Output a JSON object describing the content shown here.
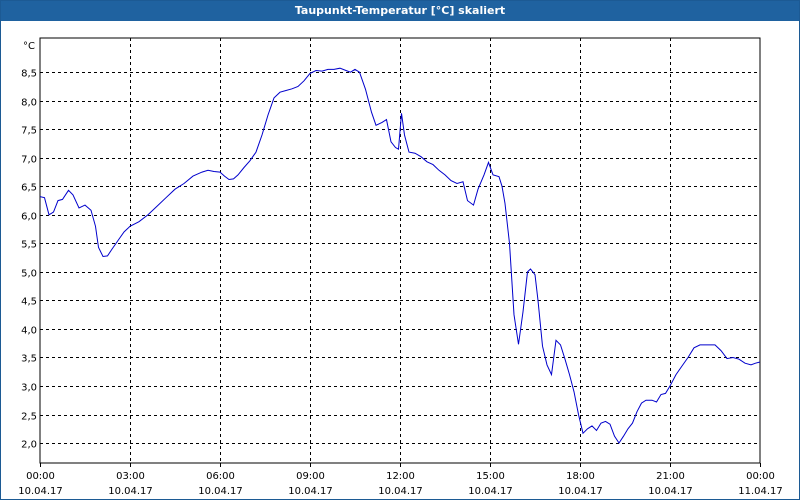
{
  "window": {
    "title": "Taupunkt-Temperatur [°C] skaliert"
  },
  "colors": {
    "title_bar": "#1f62a0",
    "line": "#0000cc",
    "grid": "#000000",
    "background": "#ffffff"
  },
  "chart_data": {
    "type": "line",
    "title": "Taupunkt-Temperatur [°C] skaliert",
    "unit_label": "°C",
    "xlabel": "",
    "ylabel": "",
    "ylim": [
      1.65,
      9.1
    ],
    "xlim_hours": [
      0,
      24
    ],
    "grid": true,
    "y_ticks": [
      {
        "value": 2.0,
        "label": "2,0"
      },
      {
        "value": 2.5,
        "label": "2,5"
      },
      {
        "value": 3.0,
        "label": "3,0"
      },
      {
        "value": 3.5,
        "label": "3,5"
      },
      {
        "value": 4.0,
        "label": "4,0"
      },
      {
        "value": 4.5,
        "label": "4,5"
      },
      {
        "value": 5.0,
        "label": "5,0"
      },
      {
        "value": 5.5,
        "label": "5,5"
      },
      {
        "value": 6.0,
        "label": "6,0"
      },
      {
        "value": 6.5,
        "label": "6,5"
      },
      {
        "value": 7.0,
        "label": "7,0"
      },
      {
        "value": 7.5,
        "label": "7,5"
      },
      {
        "value": 8.0,
        "label": "8,0"
      },
      {
        "value": 8.5,
        "label": "8,5"
      }
    ],
    "x_ticks": [
      {
        "hour": 0,
        "time": "00:00",
        "date": "10.04.17"
      },
      {
        "hour": 3,
        "time": "03:00",
        "date": "10.04.17"
      },
      {
        "hour": 6,
        "time": "06:00",
        "date": "10.04.17"
      },
      {
        "hour": 9,
        "time": "09:00",
        "date": "10.04.17"
      },
      {
        "hour": 12,
        "time": "12:00",
        "date": "10.04.17"
      },
      {
        "hour": 15,
        "time": "15:00",
        "date": "10.04.17"
      },
      {
        "hour": 18,
        "time": "18:00",
        "date": "10.04.17"
      },
      {
        "hour": 21,
        "time": "21:00",
        "date": "10.04.17"
      },
      {
        "hour": 24,
        "time": "00:00",
        "date": "11.04.17"
      }
    ],
    "series": [
      {
        "points": [
          [
            0.0,
            6.32
          ],
          [
            0.15,
            6.3
          ],
          [
            0.3,
            6.0
          ],
          [
            0.45,
            6.05
          ],
          [
            0.6,
            6.25
          ],
          [
            0.75,
            6.27
          ],
          [
            0.95,
            6.43
          ],
          [
            1.1,
            6.35
          ],
          [
            1.3,
            6.12
          ],
          [
            1.5,
            6.17
          ],
          [
            1.7,
            6.08
          ],
          [
            1.85,
            5.8
          ],
          [
            1.95,
            5.43
          ],
          [
            2.1,
            5.27
          ],
          [
            2.25,
            5.28
          ],
          [
            2.4,
            5.4
          ],
          [
            2.6,
            5.55
          ],
          [
            2.8,
            5.7
          ],
          [
            3.0,
            5.8
          ],
          [
            3.3,
            5.88
          ],
          [
            3.6,
            6.0
          ],
          [
            3.9,
            6.15
          ],
          [
            4.2,
            6.3
          ],
          [
            4.5,
            6.45
          ],
          [
            4.8,
            6.55
          ],
          [
            5.1,
            6.68
          ],
          [
            5.4,
            6.75
          ],
          [
            5.6,
            6.78
          ],
          [
            5.8,
            6.76
          ],
          [
            6.0,
            6.75
          ],
          [
            6.15,
            6.68
          ],
          [
            6.3,
            6.62
          ],
          [
            6.45,
            6.63
          ],
          [
            6.6,
            6.7
          ],
          [
            6.8,
            6.83
          ],
          [
            7.0,
            6.95
          ],
          [
            7.2,
            7.1
          ],
          [
            7.4,
            7.4
          ],
          [
            7.6,
            7.75
          ],
          [
            7.8,
            8.05
          ],
          [
            8.0,
            8.15
          ],
          [
            8.2,
            8.18
          ],
          [
            8.4,
            8.21
          ],
          [
            8.6,
            8.25
          ],
          [
            8.8,
            8.35
          ],
          [
            9.0,
            8.48
          ],
          [
            9.2,
            8.53
          ],
          [
            9.4,
            8.52
          ],
          [
            9.6,
            8.55
          ],
          [
            9.8,
            8.55
          ],
          [
            10.0,
            8.57
          ],
          [
            10.2,
            8.53
          ],
          [
            10.35,
            8.5
          ],
          [
            10.5,
            8.55
          ],
          [
            10.65,
            8.5
          ],
          [
            10.85,
            8.2
          ],
          [
            11.05,
            7.8
          ],
          [
            11.2,
            7.57
          ],
          [
            11.4,
            7.62
          ],
          [
            11.55,
            7.67
          ],
          [
            11.7,
            7.28
          ],
          [
            11.85,
            7.18
          ],
          [
            11.95,
            7.15
          ],
          [
            12.05,
            7.78
          ],
          [
            12.15,
            7.4
          ],
          [
            12.3,
            7.1
          ],
          [
            12.5,
            7.08
          ],
          [
            12.7,
            7.02
          ],
          [
            12.9,
            6.93
          ],
          [
            13.1,
            6.88
          ],
          [
            13.3,
            6.78
          ],
          [
            13.5,
            6.7
          ],
          [
            13.7,
            6.6
          ],
          [
            13.9,
            6.55
          ],
          [
            14.1,
            6.58
          ],
          [
            14.25,
            6.25
          ],
          [
            14.45,
            6.17
          ],
          [
            14.6,
            6.45
          ],
          [
            14.8,
            6.7
          ],
          [
            14.95,
            6.92
          ],
          [
            15.1,
            6.7
          ],
          [
            15.3,
            6.67
          ],
          [
            15.4,
            6.5
          ],
          [
            15.5,
            6.2
          ],
          [
            15.65,
            5.5
          ],
          [
            15.8,
            4.25
          ],
          [
            15.95,
            3.73
          ],
          [
            16.1,
            4.3
          ],
          [
            16.25,
            5.0
          ],
          [
            16.35,
            5.05
          ],
          [
            16.5,
            4.95
          ],
          [
            16.6,
            4.5
          ],
          [
            16.75,
            3.7
          ],
          [
            16.9,
            3.37
          ],
          [
            17.05,
            3.2
          ],
          [
            17.2,
            3.8
          ],
          [
            17.35,
            3.72
          ],
          [
            17.5,
            3.47
          ],
          [
            17.65,
            3.2
          ],
          [
            17.8,
            2.9
          ],
          [
            17.95,
            2.5
          ],
          [
            18.1,
            2.17
          ],
          [
            18.25,
            2.25
          ],
          [
            18.4,
            2.3
          ],
          [
            18.55,
            2.22
          ],
          [
            18.7,
            2.35
          ],
          [
            18.85,
            2.38
          ],
          [
            19.0,
            2.33
          ],
          [
            19.15,
            2.12
          ],
          [
            19.3,
            2.0
          ],
          [
            19.45,
            2.12
          ],
          [
            19.6,
            2.25
          ],
          [
            19.75,
            2.35
          ],
          [
            19.9,
            2.55
          ],
          [
            20.05,
            2.7
          ],
          [
            20.2,
            2.75
          ],
          [
            20.4,
            2.75
          ],
          [
            20.55,
            2.72
          ],
          [
            20.7,
            2.85
          ],
          [
            20.85,
            2.87
          ],
          [
            21.0,
            3.0
          ],
          [
            21.2,
            3.2
          ],
          [
            21.4,
            3.35
          ],
          [
            21.6,
            3.5
          ],
          [
            21.8,
            3.67
          ],
          [
            22.0,
            3.72
          ],
          [
            22.25,
            3.72
          ],
          [
            22.5,
            3.72
          ],
          [
            22.7,
            3.62
          ],
          [
            22.9,
            3.48
          ],
          [
            23.1,
            3.5
          ],
          [
            23.3,
            3.47
          ],
          [
            23.5,
            3.4
          ],
          [
            23.7,
            3.37
          ],
          [
            23.85,
            3.4
          ],
          [
            24.0,
            3.42
          ]
        ]
      }
    ]
  }
}
